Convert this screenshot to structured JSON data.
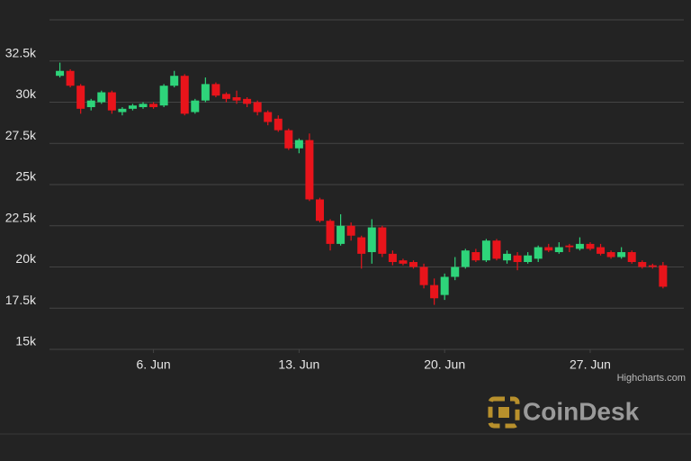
{
  "chart_data": {
    "type": "candlestick",
    "x": [
      1.5,
      2,
      2.5,
      3,
      3.5,
      4,
      4.5,
      5,
      5.5,
      6,
      6.5,
      7,
      7.5,
      8,
      8.5,
      9,
      9.5,
      10,
      10.5,
      11,
      11.5,
      12,
      12.5,
      13,
      13.5,
      14,
      14.5,
      15,
      15.5,
      16,
      16.5,
      17,
      17.5,
      18,
      18.5,
      19,
      19.5,
      20,
      20.5,
      21,
      21.5,
      22,
      22.5,
      23,
      23.5,
      24,
      24.5,
      25,
      25.5,
      26,
      26.5,
      27,
      27.5,
      28,
      28.5,
      29,
      29.5,
      30,
      30.5
    ],
    "open": [
      31600,
      31900,
      31000,
      29700,
      30000,
      30600,
      29400,
      29600,
      29700,
      29900,
      29800,
      31000,
      31600,
      29400,
      30100,
      31100,
      30500,
      30300,
      30200,
      30000,
      29400,
      29000,
      28300,
      27200,
      27700,
      24100,
      22800,
      21400,
      22500,
      21800,
      20900,
      22400,
      20800,
      20400,
      20300,
      20000,
      18900,
      18300,
      19400,
      20000,
      20900,
      20400,
      21600,
      20400,
      20700,
      20300,
      20500,
      21200,
      20900,
      21300,
      21100,
      21400,
      21200,
      20900,
      20600,
      20900,
      20300,
      20100,
      20100
    ],
    "high": [
      32400,
      32000,
      31100,
      30200,
      30700,
      30700,
      29700,
      29900,
      30000,
      30000,
      31100,
      31900,
      31700,
      30200,
      31500,
      31200,
      30600,
      30700,
      30300,
      30100,
      29500,
      29200,
      28400,
      27800,
      28100,
      24200,
      22900,
      23200,
      22700,
      21900,
      22900,
      22500,
      21000,
      20500,
      20400,
      20200,
      19300,
      19600,
      20600,
      21100,
      21100,
      21700,
      21700,
      21000,
      20900,
      20900,
      21300,
      21400,
      21500,
      21400,
      21800,
      21500,
      21400,
      21000,
      21200,
      21000,
      20400,
      20200,
      20300
    ],
    "low": [
      31500,
      30900,
      29300,
      29500,
      29900,
      29300,
      29200,
      29500,
      29600,
      29600,
      29700,
      30900,
      29200,
      29300,
      30000,
      30300,
      30000,
      29900,
      29700,
      29200,
      28600,
      28200,
      27100,
      26900,
      24000,
      22700,
      21000,
      21300,
      21600,
      19900,
      20200,
      20600,
      20100,
      20100,
      19900,
      18700,
      17700,
      18000,
      19200,
      19900,
      20300,
      20300,
      20400,
      20200,
      19800,
      20200,
      20300,
      20900,
      20800,
      20900,
      21000,
      21000,
      20700,
      20500,
      20500,
      20200,
      19900,
      19900,
      18700
    ],
    "close": [
      31900,
      31000,
      29600,
      30100,
      30600,
      29500,
      29600,
      29800,
      29900,
      29700,
      31000,
      31600,
      29300,
      30100,
      31100,
      30400,
      30200,
      30100,
      29900,
      29400,
      28800,
      28300,
      27200,
      27700,
      24100,
      22800,
      21400,
      22500,
      21900,
      20800,
      22400,
      20800,
      20300,
      20200,
      20000,
      18900,
      18100,
      19400,
      20000,
      21000,
      20400,
      21600,
      20500,
      20800,
      20300,
      20700,
      21200,
      21000,
      21200,
      21200,
      21400,
      21100,
      20800,
      20600,
      20900,
      20300,
      20000,
      20000,
      18800
    ],
    "up_color": "#2ed47a",
    "down_color": "#e8141b",
    "xlim": [
      1,
      31.5
    ],
    "xticks": [
      {
        "value": 6,
        "label": "6. Jun"
      },
      {
        "value": 13,
        "label": "13. Jun"
      },
      {
        "value": 20,
        "label": "20. Jun"
      },
      {
        "value": 27,
        "label": "27. Jun"
      }
    ],
    "ylim": [
      15000,
      35000
    ],
    "yticks": [
      {
        "value": 15000,
        "label": "15k"
      },
      {
        "value": 17500,
        "label": "17.5k"
      },
      {
        "value": 20000,
        "label": "20k"
      },
      {
        "value": 22500,
        "label": "22.5k"
      },
      {
        "value": 25000,
        "label": "25k"
      },
      {
        "value": 27500,
        "label": "27.5k"
      },
      {
        "value": 30000,
        "label": "30k"
      },
      {
        "value": 32500,
        "label": "32.5k"
      }
    ],
    "grid": true,
    "credit": "Highcharts.com",
    "watermark": "CoinDesk"
  }
}
